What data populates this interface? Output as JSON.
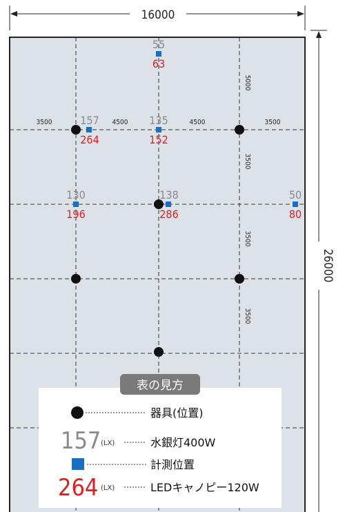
{
  "dimensions": {
    "top_width": "16000",
    "right_height": "26000"
  },
  "horizontal_spacings": [
    "3500",
    "4500",
    "4500",
    "3500"
  ],
  "vertical_spacings": [
    "5000",
    "3500",
    "3500",
    "3500"
  ],
  "measurements": [
    {
      "id": "m1",
      "mercury": "55",
      "led": "63"
    },
    {
      "id": "m2",
      "mercury": "157",
      "led": "264"
    },
    {
      "id": "m3",
      "mercury": "135",
      "led": "152"
    },
    {
      "id": "m4",
      "mercury": "130",
      "led": "196"
    },
    {
      "id": "m5",
      "mercury": "138",
      "led": "286"
    },
    {
      "id": "m6",
      "mercury": "50",
      "led": "80"
    }
  ],
  "legend": {
    "title": "表の見方",
    "fixture_label": "器具(位置)",
    "sample_mercury": "157",
    "unit": "(LX)",
    "mercury_label": "水銀灯400W",
    "position_label": "計測位置",
    "sample_led": "264",
    "led_label": "LEDキャノピー120W"
  },
  "colors": {
    "floor": "#dde2e8",
    "mercury_text": "#8a8a8a",
    "led_text": "#e02020",
    "marker": "#1a6fc0",
    "fixture": "#111111",
    "legend_title_bg": "#7a7a7a"
  }
}
